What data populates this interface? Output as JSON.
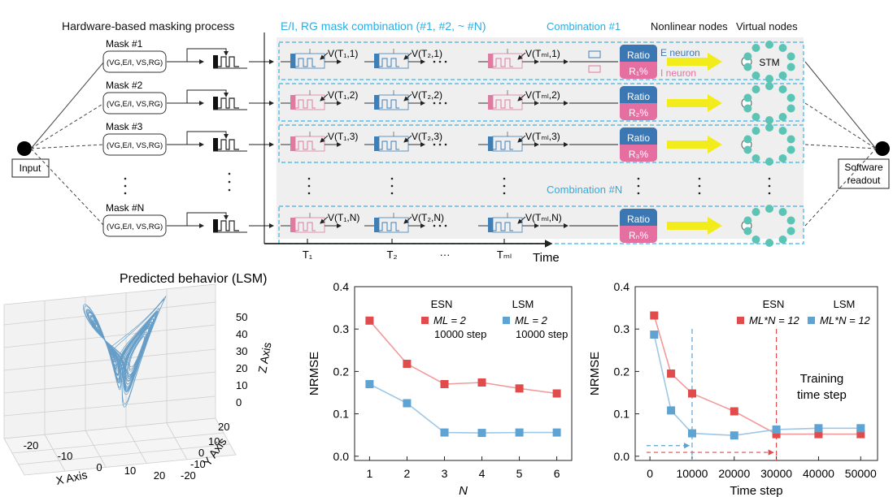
{
  "top": {
    "title_hw": "Hardware-based masking process",
    "title_comb": "E/I, RG mask combination (#1, #2, ~ #N)",
    "combination_1": "Combination #1",
    "combination_n": "Combination #N",
    "nonlinear_nodes": "Nonlinear nodes",
    "virtual_nodes": "Virtual nodes",
    "input": "Input",
    "readout_line1": "Software",
    "readout_line2": "readout",
    "stm": "STM",
    "e_neuron": "E neuron",
    "i_neuron": "I neuron",
    "ratio": "Ratio",
    "r_labels": [
      "R₁%",
      "R₂%",
      "R₃%",
      "Rₙ%"
    ],
    "masks": [
      {
        "name": "Mask #1",
        "params": "(VG,E/I, VS,RG)",
        "v": [
          "V(T₁,1)",
          "V(T₂,1)",
          "V(Tₘₗ,1)"
        ]
      },
      {
        "name": "Mask #2",
        "params": "(VG,E/I, VS,RG)",
        "v": [
          "V(T₁,2)",
          "V(T₂,2)",
          "V(Tₘₗ,2)"
        ]
      },
      {
        "name": "Mask #3",
        "params": "(VG,E/I, VS,RG)",
        "v": [
          "V(T₁,3)",
          "V(T₂,3)",
          "V(Tₘₗ,3)"
        ]
      },
      {
        "name": "Mask #N",
        "params": "(VG,E/I, VS,RG)",
        "v": [
          "V(T₁,N)",
          "V(T₂,N)",
          "V(Tₘₗ,N)"
        ]
      }
    ],
    "time_ticks": [
      "T₁",
      "T₂",
      "···",
      "Tₘₗ"
    ],
    "time_label": "Time"
  },
  "lorenz": {
    "title": "Predicted behavior (LSM)",
    "x_axis": "X Axis",
    "y_axis": "Y Axis",
    "z_axis": "Z Axis",
    "x_ticks": [
      "-20",
      "-10",
      "0",
      "10",
      "20"
    ],
    "y_ticks": [
      "-20",
      "-10",
      "0",
      "10",
      "20"
    ],
    "z_ticks": [
      "0",
      "10",
      "20",
      "30",
      "40",
      "50"
    ],
    "color": "#4f8fc0"
  },
  "chart_data": [
    {
      "type": "line",
      "xlabel": "N",
      "ylabel": "NRMSE",
      "x": [
        1,
        2,
        3,
        4,
        5,
        6
      ],
      "xlim": [
        0.6,
        6.4
      ],
      "ylim": [
        -0.01,
        0.4
      ],
      "yticks": [
        0.0,
        0.1,
        0.2,
        0.3,
        0.4
      ],
      "ytick_labels": [
        "0.0",
        "0.1",
        "0.2",
        "0.3",
        "0.4"
      ],
      "xtick_labels": [
        "1",
        "2",
        "3",
        "4",
        "5",
        "6"
      ],
      "legend_placement": "top-right",
      "series": [
        {
          "name": "ESN",
          "legend_text": "ML = 2",
          "legend_sub": "10000 step",
          "color": "#e04b4b",
          "line": "#f19a9a",
          "values": [
            0.32,
            0.218,
            0.17,
            0.174,
            0.16,
            0.148
          ]
        },
        {
          "name": "LSM",
          "legend_text": "ML = 2",
          "legend_sub": "10000 step",
          "color": "#5fa3d2",
          "line": "#9cc8e6",
          "values": [
            0.17,
            0.125,
            0.056,
            0.055,
            0.056,
            0.056
          ]
        }
      ]
    },
    {
      "type": "line",
      "xlabel": "Time step",
      "ylabel": "NRMSE",
      "x": [
        1000,
        5000,
        10000,
        20000,
        30000,
        40000,
        50000
      ],
      "xlim": [
        -3500,
        54000
      ],
      "ylim": [
        -0.01,
        0.4
      ],
      "yticks": [
        0.0,
        0.1,
        0.2,
        0.3,
        0.4
      ],
      "ytick_labels": [
        "0.0",
        "0.1",
        "0.2",
        "0.3",
        "0.4"
      ],
      "xticks": [
        0,
        10000,
        20000,
        30000,
        40000,
        50000
      ],
      "xtick_labels": [
        "0",
        "10000",
        "20000",
        "30000",
        "40000",
        "50000"
      ],
      "legend_placement": "top-right",
      "annotation": "Training time step",
      "annotation_lines": [
        "Training",
        "time step"
      ],
      "series": [
        {
          "name": "ESN",
          "legend_text": "ML*N = 12",
          "color": "#e04b4b",
          "line": "#f19a9a",
          "x": [
            1000,
            5000,
            10000,
            20000,
            30000,
            40000,
            50000
          ],
          "values": [
            0.332,
            0.195,
            0.148,
            0.106,
            0.052,
            0.052,
            0.052
          ]
        },
        {
          "name": "LSM",
          "legend_text": "ML*N = 12",
          "color": "#5fa3d2",
          "line": "#9cc8e6",
          "x": [
            1000,
            5000,
            10000,
            20000,
            30000,
            40000,
            50000
          ],
          "values": [
            0.287,
            0.108,
            0.054,
            0.049,
            0.063,
            0.066,
            0.066
          ]
        }
      ],
      "guides": [
        {
          "x": 10000,
          "color": "#5fa3d2"
        },
        {
          "x": 30000,
          "color": "#e04b4b"
        }
      ]
    }
  ],
  "colors": {
    "blue_block": "#3f7fb8",
    "pink_block": "#e07aa0",
    "ratio_blue": "#3b78b3",
    "ratio_pink": "#e46fa0",
    "teal": "#5cc4b4",
    "arrow_yellow": "#f3ec1d",
    "dash_cyan": "#39b5e6"
  }
}
